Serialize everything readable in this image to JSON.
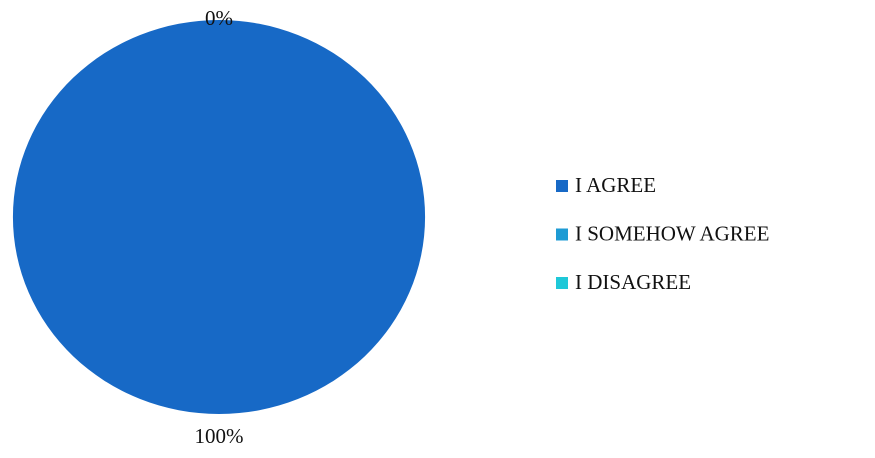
{
  "chart_data": {
    "type": "pie",
    "categories": [
      "I AGREE",
      "I SOMEHOW AGREE",
      "I DISAGREE"
    ],
    "values": [
      100,
      0,
      0
    ],
    "value_labels": [
      "100%",
      "0%",
      null
    ],
    "colors": [
      "#1769c6",
      "#1e9bd4",
      "#1fc8d8"
    ],
    "legend": "right"
  }
}
